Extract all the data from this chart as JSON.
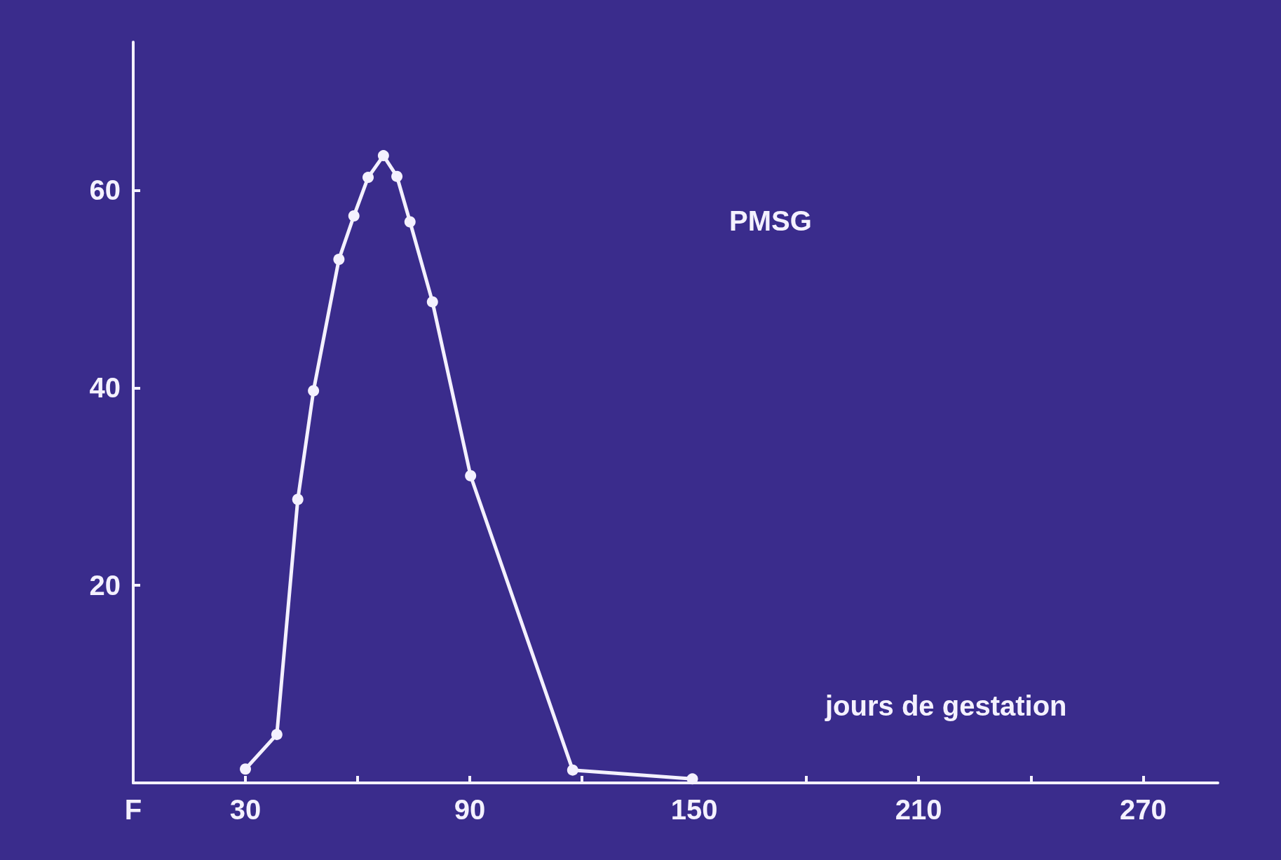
{
  "chart_data": {
    "type": "line",
    "xlabel": "jours de gestation",
    "annotations": [
      "PMSG"
    ],
    "x": [
      30,
      38.4,
      44,
      48.2,
      55,
      59,
      62.8,
      66.9,
      70.5,
      74,
      80,
      90.2,
      117.5,
      149.5
    ],
    "series": [
      {
        "color": "#f4f1ff",
        "values": [
          1.4,
          4.9,
          28.7,
          39.7,
          53,
          57.4,
          61.3,
          63.5,
          61.4,
          56.8,
          48.7,
          31.1,
          1.3,
          0.4
        ]
      }
    ],
    "xlim": [
      0,
      290
    ],
    "xticks": [
      {
        "value": 0,
        "label": "F"
      },
      30,
      {
        "value": 60,
        "label": null
      },
      90,
      {
        "value": 120,
        "label": null
      },
      150,
      {
        "value": 180,
        "label": null
      },
      210,
      {
        "value": 240,
        "label": null
      },
      270
    ],
    "ylim": [
      0,
      75
    ],
    "yticks": [
      {
        "value": 0,
        "label": null
      },
      20,
      40,
      60
    ],
    "marker": "circle",
    "line_style": "solid",
    "grid": false
  }
}
